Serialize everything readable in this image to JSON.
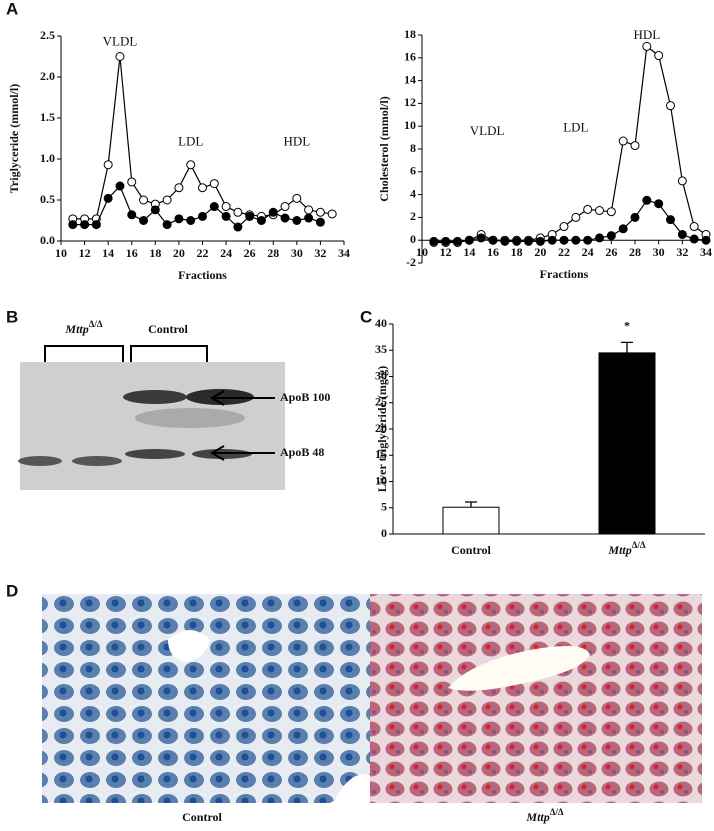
{
  "panel_labels": {
    "a": "A",
    "b": "B",
    "c": "C",
    "d": "D"
  },
  "chart_data": [
    {
      "type": "line",
      "ylabel": "Triglyceride (mmol/l)",
      "xlabel": "Fractions",
      "xlim": [
        10,
        34
      ],
      "xticks": [
        10,
        12,
        14,
        16,
        18,
        20,
        22,
        24,
        26,
        28,
        30,
        32,
        34
      ],
      "ylim": [
        0,
        2.5
      ],
      "yticks": [
        {
          "value": 0,
          "label": "0.0"
        },
        0.5,
        {
          "value": 1,
          "label": "1.0"
        },
        1.5,
        {
          "value": 2,
          "label": "2.0"
        },
        2.5
      ],
      "x": [
        11,
        12,
        13,
        14,
        15,
        16,
        17,
        18,
        19,
        20,
        21,
        22,
        23,
        24,
        25,
        26,
        27,
        28,
        29,
        30,
        31,
        32,
        33
      ],
      "series": [
        {
          "color": "#000000",
          "marker_fill": "#ffffff",
          "values": [
            0.27,
            0.27,
            0.27,
            0.93,
            2.25,
            0.72,
            0.5,
            0.45,
            0.5,
            0.65,
            0.93,
            0.65,
            0.7,
            0.42,
            0.35,
            0.32,
            0.3,
            0.32,
            0.42,
            0.52,
            0.38,
            0.35,
            0.33
          ]
        },
        {
          "color": "#000000",
          "marker_fill": "#000000",
          "values": [
            0.2,
            0.2,
            0.2,
            0.52,
            0.67,
            0.32,
            0.25,
            0.38,
            0.2,
            0.27,
            0.25,
            0.3,
            0.42,
            0.3,
            0.17,
            0.3,
            0.25,
            0.35,
            0.28,
            0.25,
            0.28,
            0.23,
            null
          ]
        }
      ],
      "annotations": [
        {
          "text": "VLDL",
          "x": 15,
          "y": 2.42
        },
        {
          "text": "LDL",
          "x": 21,
          "y": 1.2
        },
        {
          "text": "HDL",
          "x": 30,
          "y": 1.2
        }
      ]
    },
    {
      "type": "line",
      "ylabel": "Cholesterol (mmol/l)",
      "xlabel": "Fractions",
      "xlim": [
        10,
        34
      ],
      "xticks": [
        10,
        12,
        14,
        16,
        18,
        20,
        22,
        24,
        26,
        28,
        30,
        32,
        34
      ],
      "ylim": [
        -2,
        18
      ],
      "yticks": [
        -2,
        0,
        2,
        4,
        6,
        8,
        10,
        12,
        14,
        16,
        18
      ],
      "x": [
        11,
        12,
        13,
        14,
        15,
        16,
        17,
        18,
        19,
        20,
        21,
        22,
        23,
        24,
        25,
        26,
        27,
        28,
        29,
        30,
        31,
        32,
        33,
        34
      ],
      "series": [
        {
          "color": "#000000",
          "marker_fill": "#ffffff",
          "values": [
            -0.2,
            -0.2,
            -0.2,
            0,
            0.5,
            0,
            0,
            0,
            0,
            0.2,
            0.5,
            1.2,
            2,
            2.7,
            2.6,
            2.5,
            8.7,
            8.3,
            17,
            16.2,
            11.8,
            5.2,
            1.2,
            0.5
          ]
        },
        {
          "color": "#000000",
          "marker_fill": "#000000",
          "values": [
            -0.1,
            -0.1,
            -0.1,
            0,
            0.2,
            0,
            -0.1,
            -0.1,
            -0.1,
            -0.1,
            0,
            0,
            0,
            0,
            0.2,
            0.4,
            1,
            2,
            3.5,
            3.2,
            1.8,
            0.5,
            0.1,
            0
          ]
        }
      ],
      "annotations": [
        {
          "text": "VLDL",
          "x": 15.5,
          "y": 9.5
        },
        {
          "text": "LDL",
          "x": 23,
          "y": 9.8
        },
        {
          "text": "HDL",
          "x": 29,
          "y": 17.9
        }
      ]
    },
    {
      "type": "bar",
      "ylabel": "Liver triglyceride (mg/g)",
      "ylim": [
        0,
        40
      ],
      "yticks": [
        0,
        5,
        10,
        15,
        20,
        25,
        30,
        35,
        40
      ],
      "categories": [
        {
          "text": "Control"
        },
        {
          "text": "Mttp",
          "sup": "Δ/Δ"
        }
      ],
      "values": [
        5.1,
        34.5
      ],
      "errors": [
        1.0,
        2.0
      ],
      "colors": [
        "#ffffff",
        "#000000"
      ],
      "annotations": [
        {
          "text": "*",
          "x": 1,
          "y": 39.5
        }
      ]
    }
  ],
  "blot": {
    "group1": {
      "text": "Mttp",
      "sup": "Δ/Δ"
    },
    "group2": "Control",
    "band1": "ApoB 100",
    "band2": "ApoB 48"
  },
  "histology": {
    "left": "Control",
    "right": {
      "text": "Mttp",
      "sup": "Δ/Δ"
    }
  }
}
